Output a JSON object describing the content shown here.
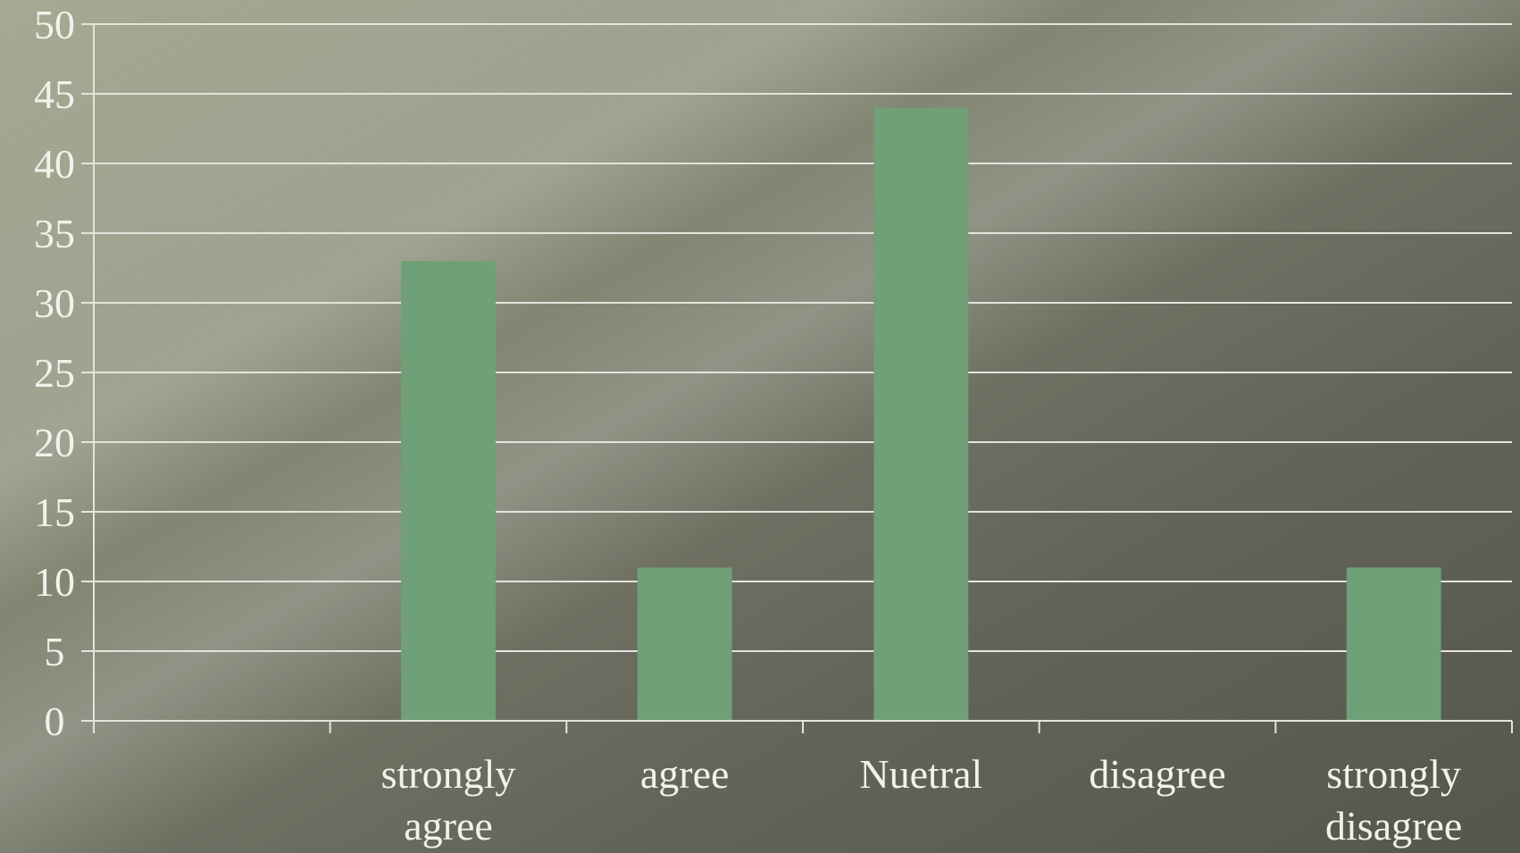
{
  "chart_data": {
    "type": "bar",
    "categories": [
      "",
      "strongly agree",
      "agree",
      "Nuetral",
      "disagree",
      "strongly disagree"
    ],
    "values": [
      0,
      33,
      11,
      44,
      0,
      11
    ],
    "title": "",
    "xlabel": "",
    "ylabel": "",
    "ylim": [
      0,
      50
    ],
    "yticks": [
      0,
      5,
      10,
      15,
      20,
      25,
      30,
      35,
      40,
      45,
      50
    ],
    "grid": true,
    "legend": "none",
    "colors": {
      "bar": "#6fa077",
      "grid": "#e4e4dc",
      "text": "#f2f2ec",
      "background_dark": "#595b4c",
      "background_light": "#b4b8a0"
    }
  }
}
